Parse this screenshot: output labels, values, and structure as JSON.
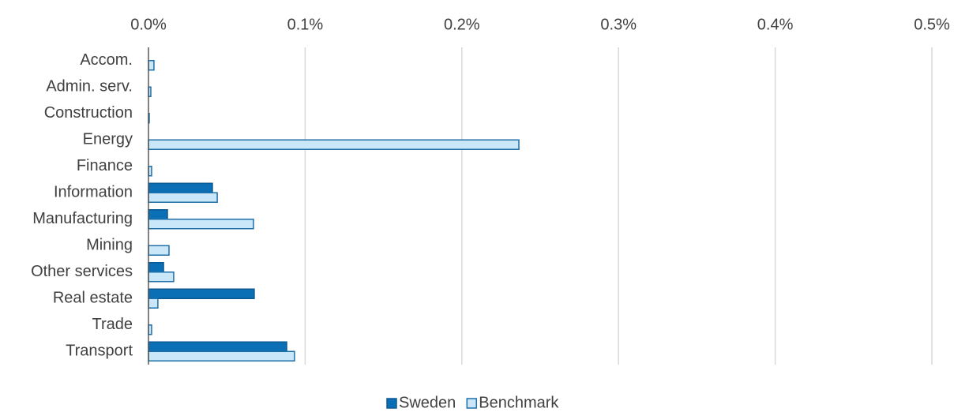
{
  "chart_data": {
    "type": "hbar",
    "categories": [
      "Accom.",
      "Admin. serv.",
      "Construction",
      "Energy",
      "Finance",
      "Information",
      "Manufacturing",
      "Mining",
      "Other services",
      "Real estate",
      "Trade",
      "Transport"
    ],
    "series": [
      {
        "name": "Sweden",
        "color": "#0b6fb5",
        "values": [
          0,
          0,
          0,
          0,
          0,
          0.0408,
          0.0121,
          0,
          0.0096,
          0.0675,
          0,
          0.0882
        ]
      },
      {
        "name": "Benchmark",
        "color": "#c9e7f8",
        "values": [
          0.0035,
          0.0015,
          0.0005,
          0.2364,
          0.002,
          0.0439,
          0.067,
          0.0131,
          0.0161,
          0.006,
          0.002,
          0.0932
        ]
      }
    ],
    "xlim": [
      0,
      0.5
    ],
    "xticks": [
      {
        "value": 0,
        "label": "0.0%"
      },
      {
        "value": 0.1,
        "label": "0.1%"
      },
      {
        "value": 0.2,
        "label": "0.2%"
      },
      {
        "value": 0.3,
        "label": "0.3%"
      },
      {
        "value": 0.4,
        "label": "0.4%"
      },
      {
        "value": 0.5,
        "label": "0.5%"
      }
    ],
    "grid": true,
    "legend": "bottom"
  }
}
